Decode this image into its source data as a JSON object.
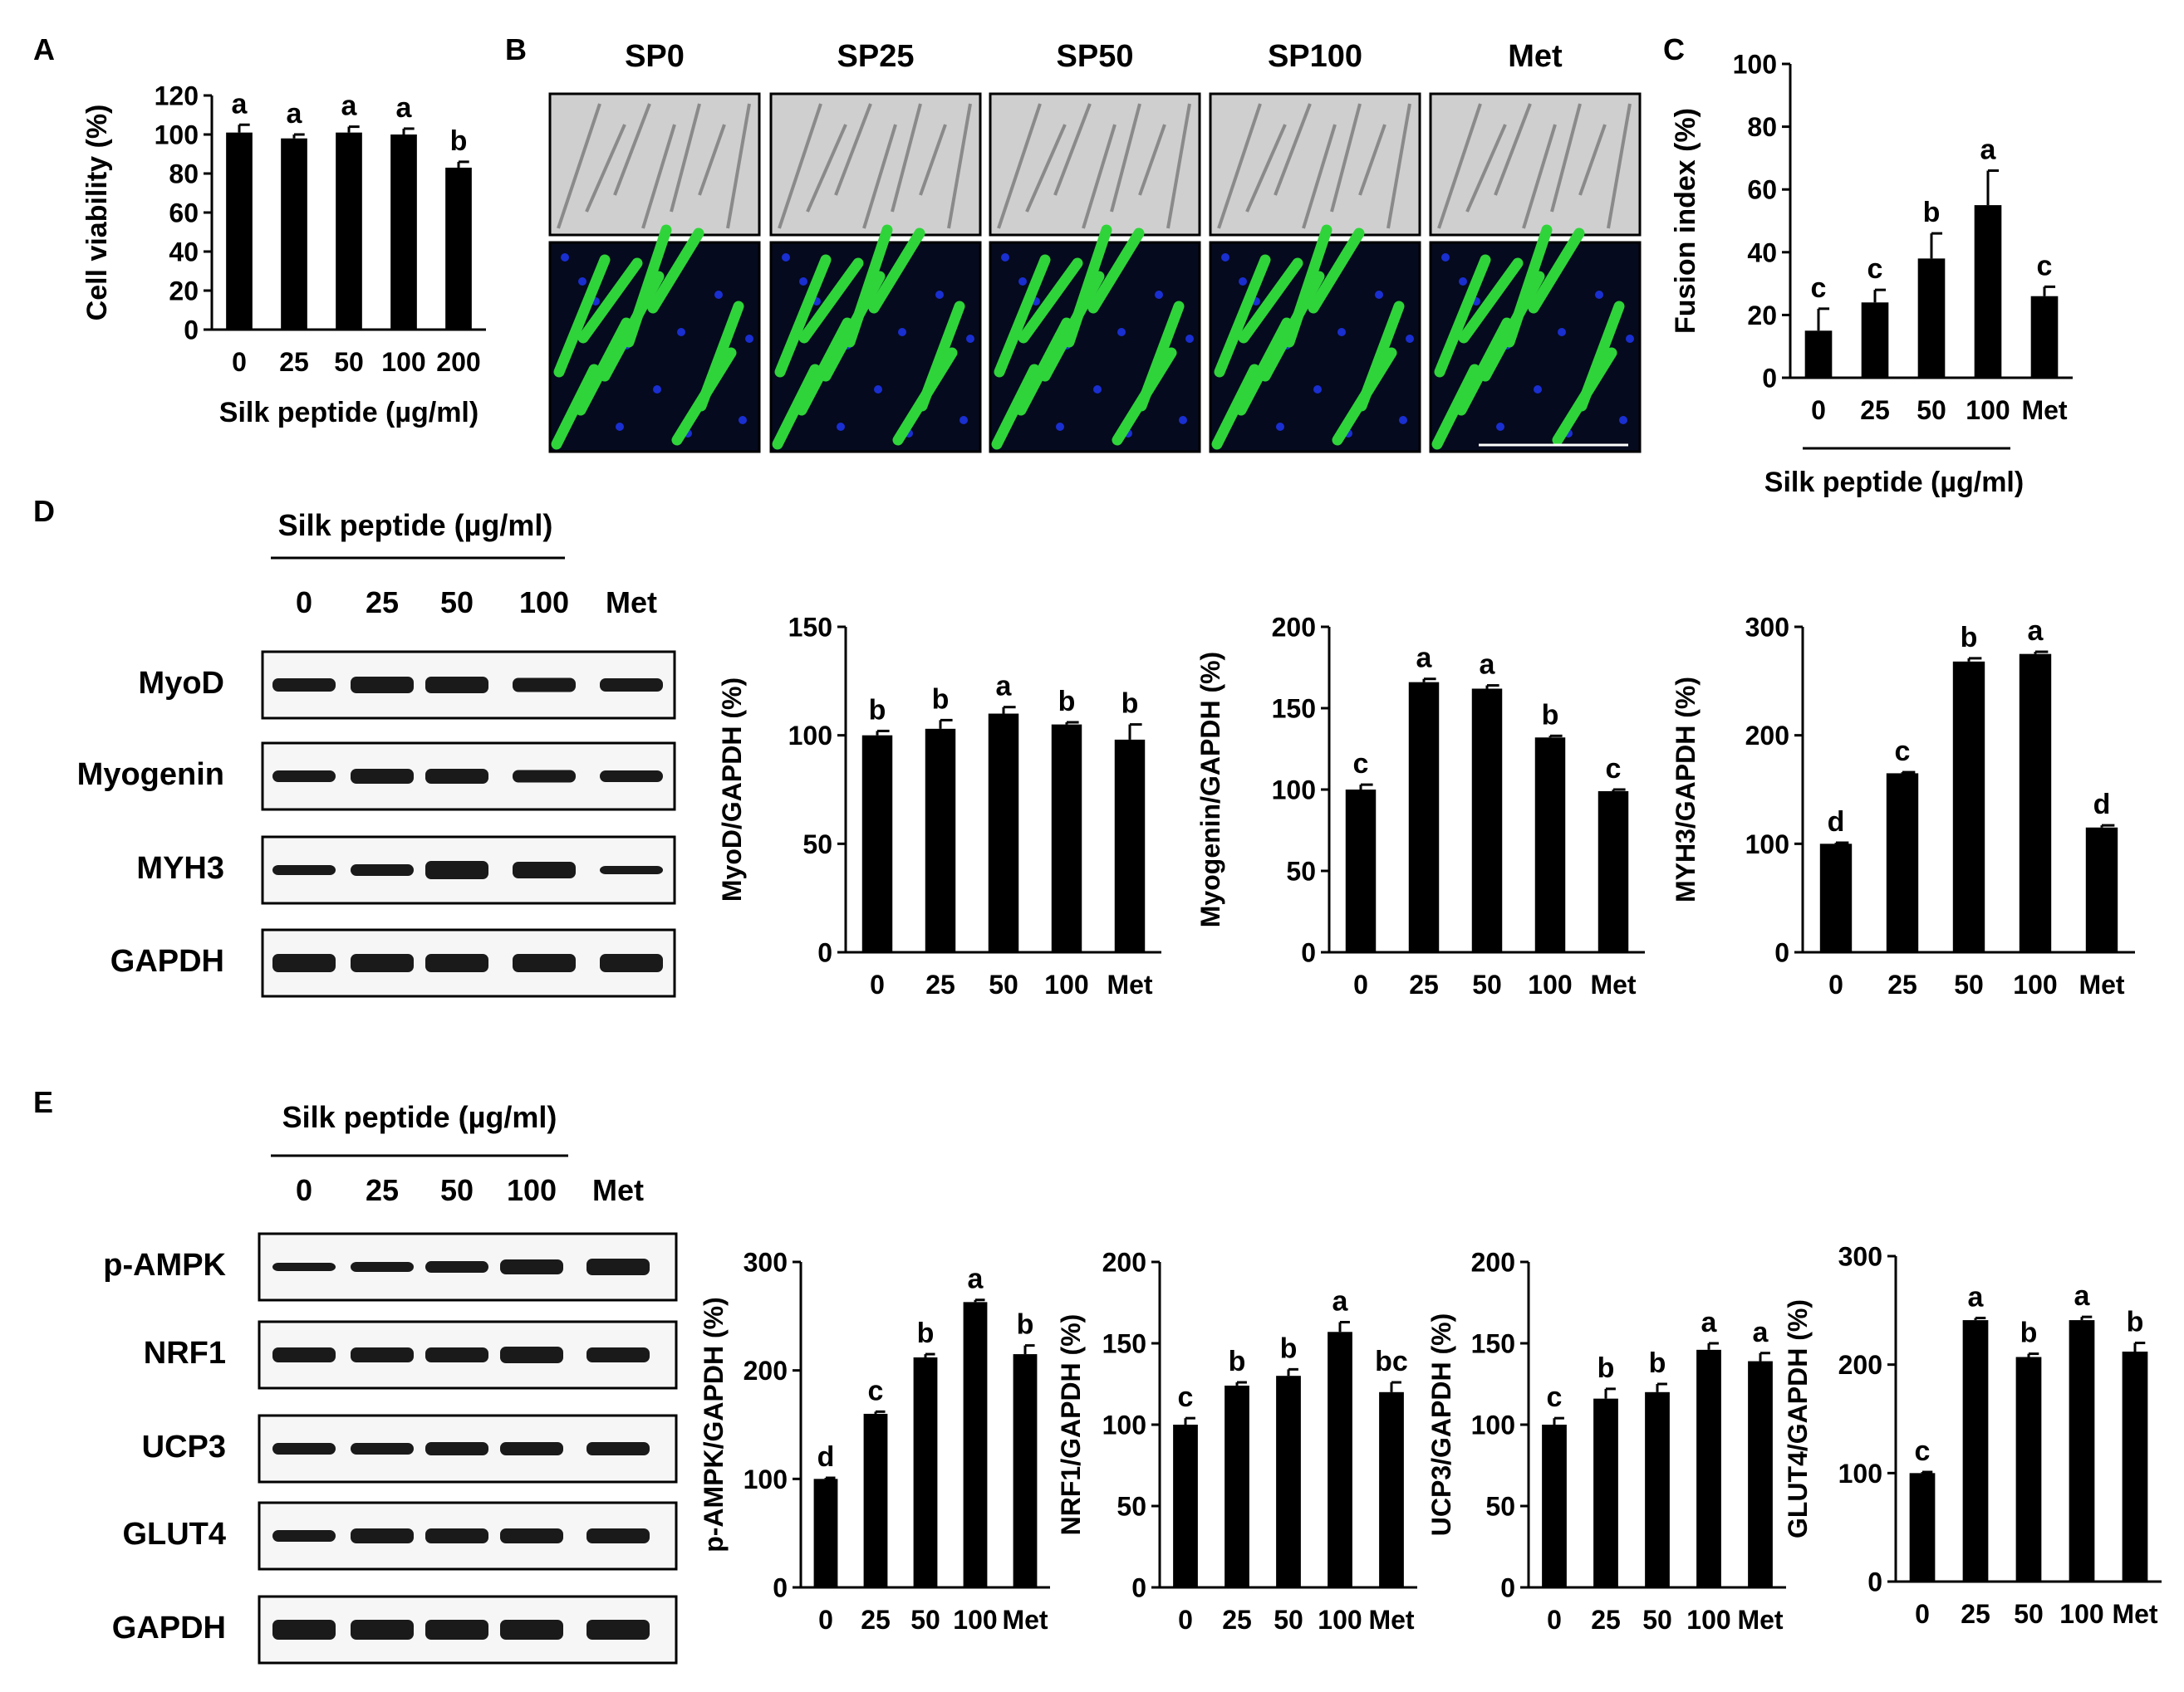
{
  "panels": {
    "A": {
      "letter": "A"
    },
    "B": {
      "letter": "B",
      "columns": [
        "SP0",
        "SP25",
        "SP50",
        "SP100",
        "Met"
      ]
    },
    "C": {
      "letter": "C"
    },
    "D": {
      "letter": "D",
      "treatment_label": "Silk peptide (µg/ml)",
      "lanes": [
        "0",
        "25",
        "50",
        "100",
        "Met"
      ],
      "proteins": [
        "MyoD",
        "Myogenin",
        "MYH3",
        "GAPDH"
      ]
    },
    "E": {
      "letter": "E",
      "treatment_label": "Silk peptide (µg/ml)",
      "lanes": [
        "0",
        "25",
        "50",
        "100",
        "Met"
      ],
      "proteins": [
        "p-AMPK",
        "NRF1",
        "UCP3",
        "GLUT4",
        "GAPDH"
      ]
    }
  },
  "colors": {
    "bar": "#000000",
    "fluorescence_green": "#2fd43a",
    "nuclei_blue": "#1a2fd0",
    "brightfield": "#cfcfcf"
  },
  "chart_data": [
    {
      "id": "A",
      "type": "bar",
      "categories": [
        "0",
        "25",
        "50",
        "100",
        "200"
      ],
      "values": [
        101,
        98,
        101,
        100,
        83
      ],
      "errors": [
        4,
        2,
        3,
        3,
        3
      ],
      "letters": [
        "a",
        "a",
        "a",
        "a",
        "b"
      ],
      "ylabel": "Cell viability (%)",
      "xlabel": "Silk peptide (µg/ml)",
      "ylim": [
        0,
        120
      ],
      "yticks": [
        0,
        20,
        40,
        60,
        80,
        100,
        120
      ]
    },
    {
      "id": "C",
      "type": "bar",
      "categories": [
        "0",
        "25",
        "50",
        "100",
        "Met"
      ],
      "values": [
        15,
        24,
        38,
        55,
        26
      ],
      "errors": [
        7,
        4,
        8,
        11,
        3
      ],
      "letters": [
        "c",
        "c",
        "b",
        "a",
        "c"
      ],
      "ylabel": "Fusion index (%)",
      "xlabel": "Silk peptide (µg/ml)",
      "ylim": [
        0,
        100
      ],
      "yticks": [
        0,
        20,
        40,
        60,
        80,
        100
      ]
    },
    {
      "id": "D1",
      "type": "bar",
      "categories": [
        "0",
        "25",
        "50",
        "100",
        "Met"
      ],
      "values": [
        100,
        103,
        110,
        105,
        98
      ],
      "errors": [
        2,
        4,
        3,
        1,
        7
      ],
      "letters": [
        "b",
        "b",
        "a",
        "b",
        "b"
      ],
      "ylabel": "MyoD/GAPDH (%)",
      "ylim": [
        0,
        150
      ],
      "yticks": [
        0,
        50,
        100,
        150
      ]
    },
    {
      "id": "D2",
      "type": "bar",
      "categories": [
        "0",
        "25",
        "50",
        "100",
        "Met"
      ],
      "values": [
        100,
        166,
        162,
        132,
        99
      ],
      "errors": [
        3,
        2,
        2,
        1,
        1
      ],
      "letters": [
        "c",
        "a",
        "a",
        "b",
        "c"
      ],
      "ylabel": "Myogenin/GAPDH (%)",
      "ylim": [
        0,
        200
      ],
      "yticks": [
        0,
        50,
        100,
        150,
        200
      ]
    },
    {
      "id": "D3",
      "type": "bar",
      "categories": [
        "0",
        "25",
        "50",
        "100",
        "Met"
      ],
      "values": [
        100,
        165,
        268,
        275,
        115
      ],
      "errors": [
        1,
        1,
        3,
        2,
        2
      ],
      "letters": [
        "d",
        "c",
        "b",
        "a",
        "d"
      ],
      "ylabel": "MYH3/GAPDH (%)",
      "ylim": [
        0,
        300
      ],
      "yticks": [
        0,
        100,
        200,
        300
      ]
    },
    {
      "id": "E1",
      "type": "bar",
      "categories": [
        "0",
        "25",
        "50",
        "100",
        "Met"
      ],
      "values": [
        100,
        160,
        212,
        263,
        215
      ],
      "errors": [
        1,
        2,
        3,
        2,
        8
      ],
      "letters": [
        "d",
        "c",
        "b",
        "a",
        "b"
      ],
      "ylabel": "p-AMPK/GAPDH (%)",
      "ylim": [
        0,
        300
      ],
      "yticks": [
        0,
        100,
        200,
        300
      ]
    },
    {
      "id": "E2",
      "type": "bar",
      "categories": [
        "0",
        "25",
        "50",
        "100",
        "Met"
      ],
      "values": [
        100,
        124,
        130,
        157,
        120
      ],
      "errors": [
        4,
        2,
        4,
        6,
        6
      ],
      "letters": [
        "c",
        "b",
        "b",
        "a",
        "bc"
      ],
      "ylabel": "NRF1/GAPDH (%)",
      "ylim": [
        0,
        200
      ],
      "yticks": [
        0,
        50,
        100,
        150,
        200
      ]
    },
    {
      "id": "E3",
      "type": "bar",
      "categories": [
        "0",
        "25",
        "50",
        "100",
        "Met"
      ],
      "values": [
        100,
        116,
        120,
        146,
        139
      ],
      "errors": [
        4,
        6,
        5,
        4,
        5
      ],
      "letters": [
        "c",
        "b",
        "b",
        "a",
        "a"
      ],
      "ylabel": "UCP3/GAPDH (%)",
      "ylim": [
        0,
        200
      ],
      "yticks": [
        0,
        50,
        100,
        150,
        200
      ]
    },
    {
      "id": "E4",
      "type": "bar",
      "categories": [
        "0",
        "25",
        "50",
        "100",
        "Met"
      ],
      "values": [
        100,
        241,
        207,
        241,
        212
      ],
      "errors": [
        1,
        2,
        3,
        3,
        8
      ],
      "letters": [
        "c",
        "a",
        "b",
        "a",
        "b"
      ],
      "ylabel": "GLUT4/GAPDH (%)",
      "ylim": [
        0,
        300
      ],
      "yticks": [
        0,
        100,
        200,
        300
      ]
    }
  ]
}
